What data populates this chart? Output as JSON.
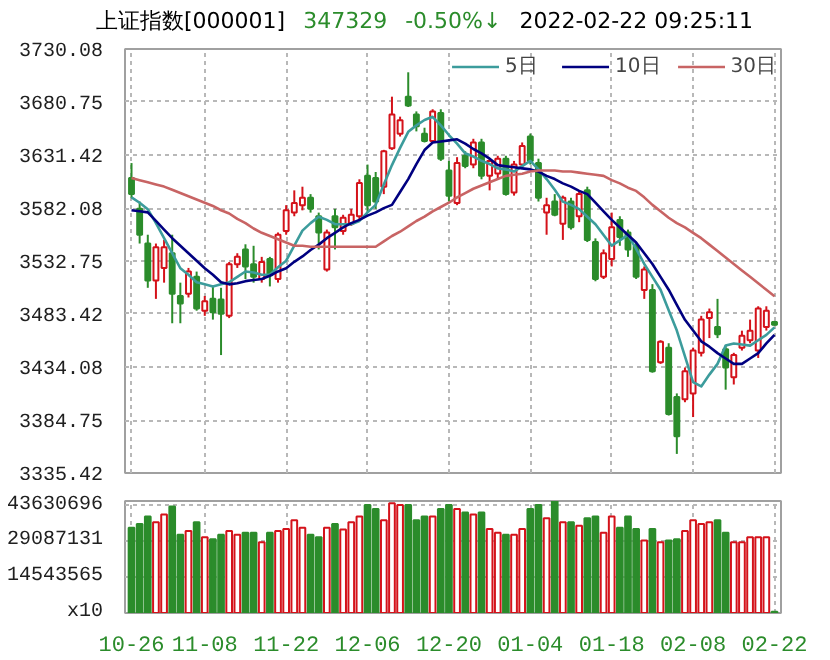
{
  "chart_data": [
    {
      "type": "candlestick",
      "title": "上证指数[000001]",
      "annotations": [
        "347329",
        "-0.50%↓",
        "2022-02-22 09:25:11"
      ],
      "categories": [
        null,
        null,
        null,
        null,
        null,
        null,
        null,
        null,
        null,
        null,
        null,
        null,
        null,
        null,
        null,
        null,
        null,
        null,
        null,
        null,
        null,
        null,
        null,
        null,
        null,
        null,
        null,
        null,
        null,
        null,
        null,
        null,
        null,
        null,
        null,
        null,
        null,
        null,
        null,
        null,
        null,
        null,
        null,
        null,
        null,
        null,
        null,
        null,
        null,
        null,
        null,
        null,
        null,
        null,
        null,
        null,
        null,
        null,
        null,
        null,
        null,
        null,
        null,
        null,
        null,
        null,
        null,
        null,
        null,
        null,
        null,
        null,
        null,
        null,
        null,
        null,
        null,
        null,
        null,
        null
      ],
      "ohlc": [
        [
          3610.1,
          3623.9,
          3591.6,
          3595.0
        ],
        [
          3581.3,
          3588.1,
          3549.0,
          3557.2
        ],
        [
          3549.0,
          3557.2,
          3507.8,
          3514.6
        ],
        [
          3514.6,
          3549.0,
          3497.5,
          3545.5
        ],
        [
          3526.3,
          3552.4,
          3512.6,
          3545.5
        ],
        [
          3540.0,
          3557.2,
          3474.8,
          3502.3
        ],
        [
          3500.2,
          3512.6,
          3474.8,
          3493.3
        ],
        [
          3502.3,
          3526.3,
          3498.8,
          3522.9
        ],
        [
          3518.1,
          3522.9,
          3486.5,
          3488.5
        ],
        [
          3486.5,
          3500.2,
          3481.7,
          3495.4
        ],
        [
          3497.5,
          3509.1,
          3478.2,
          3485.1
        ],
        [
          3496.8,
          3507.8,
          3445.2,
          3483.7
        ],
        [
          3481.7,
          3531.8,
          3479.6,
          3529.7
        ],
        [
          3529.7,
          3540.0,
          3526.3,
          3536.6
        ],
        [
          3543.5,
          3548.3,
          3516.0,
          3527.7
        ],
        [
          3529.7,
          3546.9,
          3512.6,
          3518.1
        ],
        [
          3516.0,
          3536.6,
          3512.6,
          3531.8
        ],
        [
          3534.6,
          3536.6,
          3509.1,
          3519.4
        ],
        [
          3516.0,
          3559.3,
          3512.6,
          3557.2
        ],
        [
          3560.7,
          3584.7,
          3557.2,
          3579.9
        ],
        [
          3577.8,
          3598.5,
          3574.4,
          3586.8
        ],
        [
          3584.7,
          3601.9,
          3579.9,
          3591.6
        ],
        [
          3591.6,
          3595.0,
          3577.8,
          3581.3
        ],
        [
          3574.4,
          3577.8,
          3543.5,
          3559.3
        ],
        [
          3524.9,
          3562.0,
          3522.9,
          3559.3
        ],
        [
          3574.4,
          3581.3,
          3543.5,
          3564.1
        ],
        [
          3560.7,
          3575.8,
          3557.2,
          3573.0
        ],
        [
          3567.5,
          3581.3,
          3565.5,
          3575.8
        ],
        [
          3574.4,
          3608.8,
          3571.0,
          3605.3
        ],
        [
          3612.2,
          3622.5,
          3577.8,
          3584.7
        ],
        [
          3610.1,
          3615.6,
          3581.3,
          3588.1
        ],
        [
          3601.9,
          3636.2,
          3595.0,
          3634.9
        ],
        [
          3637.6,
          3685.7,
          3636.2,
          3669.2
        ],
        [
          3651.3,
          3667.1,
          3648.6,
          3663.7
        ],
        [
          3685.7,
          3708.4,
          3676.1,
          3677.5
        ],
        [
          3669.2,
          3672.0,
          3653.4,
          3658.2
        ],
        [
          3651.3,
          3656.8,
          3643.1,
          3644.5
        ],
        [
          3644.5,
          3674.0,
          3643.1,
          3672.0
        ],
        [
          3670.6,
          3674.0,
          3625.9,
          3628.0
        ],
        [
          3617.0,
          3625.9,
          3588.1,
          3593.6
        ],
        [
          3586.8,
          3629.4,
          3584.7,
          3623.9
        ],
        [
          3630.7,
          3634.9,
          3619.1,
          3621.1
        ],
        [
          3622.5,
          3646.5,
          3619.1,
          3643.1
        ],
        [
          3643.1,
          3646.5,
          3608.8,
          3612.2
        ],
        [
          3612.2,
          3628.0,
          3598.5,
          3625.9
        ],
        [
          3614.2,
          3630.7,
          3608.8,
          3628.0
        ],
        [
          3628.0,
          3630.7,
          3593.6,
          3595.0
        ],
        [
          3596.4,
          3625.9,
          3593.6,
          3622.5
        ],
        [
          3622.5,
          3643.1,
          3619.1,
          3639.7
        ],
        [
          3648.6,
          3651.3,
          3622.5,
          3625.9
        ],
        [
          3623.9,
          3628.0,
          3588.1,
          3591.6
        ],
        [
          3577.8,
          3591.6,
          3557.2,
          3584.7
        ],
        [
          3588.1,
          3595.0,
          3574.4,
          3575.8
        ],
        [
          3567.5,
          3593.6,
          3552.4,
          3591.6
        ],
        [
          3588.1,
          3591.6,
          3562.0,
          3564.1
        ],
        [
          3574.4,
          3598.5,
          3568.9,
          3595.0
        ],
        [
          3598.5,
          3601.9,
          3550.4,
          3552.4
        ],
        [
          3550.4,
          3553.8,
          3513.9,
          3516.0
        ],
        [
          3518.1,
          3543.5,
          3516.0,
          3540.0
        ],
        [
          3534.6,
          3577.8,
          3527.7,
          3564.1
        ],
        [
          3571.0,
          3574.4,
          3546.9,
          3555.2
        ],
        [
          3559.3,
          3562.0,
          3536.6,
          3543.5
        ],
        [
          3546.9,
          3550.4,
          3516.0,
          3518.1
        ],
        [
          3505.7,
          3527.7,
          3497.5,
          3524.9
        ],
        [
          3505.7,
          3511.2,
          3428.8,
          3430.1
        ],
        [
          3438.4,
          3459.0,
          3437.0,
          3457.6
        ],
        [
          3452.1,
          3456.2,
          3388.9,
          3390.3
        ],
        [
          3406.1,
          3409.5,
          3353.2,
          3369.7
        ],
        [
          3404.0,
          3433.6,
          3401.3,
          3430.1
        ],
        [
          3409.5,
          3452.1,
          3387.5,
          3449.4
        ],
        [
          3447.3,
          3481.7,
          3443.9,
          3478.2
        ],
        [
          3479.6,
          3488.5,
          3461.0,
          3485.1
        ],
        [
          3471.4,
          3497.5,
          3461.0,
          3464.5
        ],
        [
          3450.7,
          3454.2,
          3413.0,
          3433.6
        ],
        [
          3424.6,
          3447.3,
          3417.8,
          3445.2
        ],
        [
          3452.1,
          3467.9,
          3449.4,
          3463.1
        ],
        [
          3459.0,
          3478.2,
          3456.2,
          3467.9
        ],
        [
          3449.4,
          3490.6,
          3442.5,
          3488.5
        ],
        [
          3471.4,
          3490.6,
          3468.0,
          3486.5
        ],
        [
          3476.0,
          3477.0,
          3472.6,
          3473.3
        ]
      ],
      "colors": [
        "#2b8c2b",
        "#2b8c2b",
        "#2b8c2b",
        "#d4121a",
        "#d4121a",
        "#2b8c2b",
        "#2b8c2b",
        "#d4121a",
        "#2b8c2b",
        "#d4121a",
        "#2b8c2b",
        "#2b8c2b",
        "#d4121a",
        "#d4121a",
        "#2b8c2b",
        "#2b8c2b",
        "#d4121a",
        "#2b8c2b",
        "#d4121a",
        "#d4121a",
        "#d4121a",
        "#d4121a",
        "#2b8c2b",
        "#2b8c2b",
        "#d4121a",
        "#2b8c2b",
        "#d4121a",
        "#d4121a",
        "#d4121a",
        "#2b8c2b",
        "#2b8c2b",
        "#d4121a",
        "#d4121a",
        "#d4121a",
        "#2b8c2b",
        "#2b8c2b",
        "#2b8c2b",
        "#d4121a",
        "#2b8c2b",
        "#2b8c2b",
        "#d4121a",
        "#2b8c2b",
        "#d4121a",
        "#2b8c2b",
        "#d4121a",
        "#d4121a",
        "#2b8c2b",
        "#d4121a",
        "#d4121a",
        "#2b8c2b",
        "#2b8c2b",
        "#d4121a",
        "#2b8c2b",
        "#d4121a",
        "#2b8c2b",
        "#d4121a",
        "#2b8c2b",
        "#2b8c2b",
        "#d4121a",
        "#d4121a",
        "#2b8c2b",
        "#2b8c2b",
        "#2b8c2b",
        "#d4121a",
        "#2b8c2b",
        "#d4121a",
        "#2b8c2b",
        "#2b8c2b",
        "#d4121a",
        "#d4121a",
        "#d4121a",
        "#d4121a",
        "#2b8c2b",
        "#2b8c2b",
        "#d4121a",
        "#d4121a",
        "#d4121a",
        "#d4121a",
        "#d4121a",
        "#2b8c2b"
      ],
      "series": [
        {
          "name": "5日",
          "type": "line",
          "color": "#3c9c9c",
          "values": [
            3592,
            3587,
            3581,
            3568,
            3554,
            3540,
            3526,
            3520,
            3513,
            3511,
            3509,
            3511,
            3513,
            3518,
            3523,
            3522,
            3520,
            3520,
            3527,
            3533,
            3547,
            3561,
            3568,
            3574,
            3571,
            3567,
            3567,
            3567,
            3570,
            3578,
            3585,
            3604,
            3622,
            3638,
            3653,
            3659,
            3664,
            3667,
            3659,
            3650,
            3642,
            3633,
            3630,
            3626,
            3623,
            3619,
            3618,
            3616,
            3621,
            3626,
            3618,
            3609,
            3599,
            3588,
            3585,
            3581,
            3574,
            3567,
            3557,
            3547,
            3552,
            3557,
            3544,
            3530,
            3518,
            3506,
            3487,
            3468,
            3444,
            3420,
            3416,
            3427,
            3437,
            3454,
            3456,
            3455,
            3454,
            3459,
            3464,
            3471
          ]
        },
        {
          "name": "10日",
          "type": "line",
          "color": "#000080",
          "values": [
            3580,
            3579,
            3578,
            3570,
            3562,
            3554,
            3547,
            3540,
            3533,
            3526,
            3520,
            3513,
            3511,
            3512,
            3514,
            3515,
            3516,
            3519,
            3523,
            3526,
            3532,
            3537,
            3543,
            3548,
            3554,
            3559,
            3564,
            3568,
            3571,
            3575,
            3578,
            3582,
            3585,
            3597,
            3609,
            3623,
            3636,
            3643,
            3644,
            3645,
            3646,
            3642,
            3637,
            3633,
            3628,
            3622,
            3621,
            3620,
            3619,
            3618,
            3616,
            3612,
            3609,
            3605,
            3602,
            3598,
            3595,
            3587,
            3579,
            3571,
            3564,
            3557,
            3550,
            3540,
            3530,
            3518,
            3506,
            3492,
            3478,
            3468,
            3458,
            3453,
            3447,
            3442,
            3437,
            3437,
            3442,
            3447,
            3456,
            3464
          ]
        },
        {
          "name": "30日",
          "type": "line",
          "color": "#c86464",
          "values": [
            3610,
            3608,
            3606,
            3604,
            3602,
            3599,
            3596,
            3593,
            3590,
            3587,
            3584,
            3580,
            3577,
            3572,
            3568,
            3563,
            3559,
            3556,
            3553,
            3550,
            3547,
            3547,
            3546,
            3546,
            3546,
            3546,
            3546,
            3546,
            3546,
            3546,
            3546,
            3551,
            3556,
            3560,
            3565,
            3570,
            3574,
            3579,
            3583,
            3587,
            3592,
            3596,
            3600,
            3603,
            3606,
            3609,
            3612,
            3613,
            3614,
            3616,
            3617,
            3617,
            3617,
            3616,
            3616,
            3615,
            3614,
            3613,
            3612,
            3608,
            3605,
            3601,
            3598,
            3592,
            3585,
            3579,
            3573,
            3568,
            3564,
            3559,
            3554,
            3548,
            3542,
            3536,
            3530,
            3524,
            3518,
            3512,
            3506,
            3500
          ]
        }
      ],
      "ylim": [
        3335.42,
        3730.08
      ],
      "yticks": [
        3335.42,
        3384.75,
        3434.08,
        3483.42,
        3532.75,
        3582.08,
        3631.42,
        3680.75,
        3730.08
      ],
      "grid": true,
      "legend": "top right",
      "tick_labels": "y"
    },
    {
      "type": "bar",
      "categories": [
        "10-26",
        null,
        null,
        null,
        null,
        null,
        null,
        null,
        null,
        "11-08",
        null,
        null,
        null,
        null,
        null,
        null,
        null,
        null,
        null,
        "11-22",
        null,
        null,
        null,
        null,
        null,
        null,
        null,
        null,
        null,
        "12-06",
        null,
        null,
        null,
        null,
        null,
        null,
        null,
        null,
        null,
        "12-20",
        null,
        null,
        null,
        null,
        null,
        null,
        null,
        null,
        null,
        "01-04",
        null,
        null,
        null,
        null,
        null,
        null,
        null,
        null,
        null,
        "01-18",
        null,
        null,
        null,
        null,
        null,
        null,
        null,
        null,
        null,
        "02-08",
        null,
        null,
        null,
        null,
        null,
        null,
        null,
        null,
        null,
        "02-22"
      ],
      "values": [
        34600000,
        36200000,
        39200000,
        36900000,
        40000000,
        43300000,
        31800000,
        33300000,
        36900000,
        30800000,
        30000000,
        31800000,
        33300000,
        31800000,
        32600000,
        32600000,
        28700000,
        32600000,
        33300000,
        34100000,
        37700000,
        34600000,
        31800000,
        30800000,
        34600000,
        36200000,
        33900000,
        36900000,
        39200000,
        43900000,
        42300000,
        37700000,
        44600000,
        43900000,
        43900000,
        37700000,
        39200000,
        39200000,
        42300000,
        43900000,
        42300000,
        40800000,
        40000000,
        40800000,
        34100000,
        32600000,
        31800000,
        31800000,
        34100000,
        42300000,
        43900000,
        38500000,
        45400000,
        36900000,
        36900000,
        35400000,
        38500000,
        39200000,
        32600000,
        39200000,
        34600000,
        39200000,
        34100000,
        29500000,
        34100000,
        28700000,
        29500000,
        30000000,
        33300000,
        37700000,
        36200000,
        36900000,
        37700000,
        32600000,
        28700000,
        28700000,
        30800000,
        30800000,
        30800000,
        500000
      ],
      "colors": [
        "#2b8c2b",
        "#2b8c2b",
        "#2b8c2b",
        "#d4121a",
        "#d4121a",
        "#2b8c2b",
        "#2b8c2b",
        "#d4121a",
        "#2b8c2b",
        "#d4121a",
        "#2b8c2b",
        "#2b8c2b",
        "#d4121a",
        "#d4121a",
        "#2b8c2b",
        "#2b8c2b",
        "#d4121a",
        "#2b8c2b",
        "#d4121a",
        "#d4121a",
        "#d4121a",
        "#d4121a",
        "#2b8c2b",
        "#2b8c2b",
        "#d4121a",
        "#2b8c2b",
        "#d4121a",
        "#d4121a",
        "#d4121a",
        "#2b8c2b",
        "#2b8c2b",
        "#d4121a",
        "#d4121a",
        "#d4121a",
        "#2b8c2b",
        "#2b8c2b",
        "#2b8c2b",
        "#d4121a",
        "#2b8c2b",
        "#2b8c2b",
        "#d4121a",
        "#2b8c2b",
        "#d4121a",
        "#2b8c2b",
        "#d4121a",
        "#d4121a",
        "#2b8c2b",
        "#d4121a",
        "#d4121a",
        "#2b8c2b",
        "#2b8c2b",
        "#d4121a",
        "#2b8c2b",
        "#d4121a",
        "#2b8c2b",
        "#d4121a",
        "#2b8c2b",
        "#2b8c2b",
        "#d4121a",
        "#d4121a",
        "#2b8c2b",
        "#2b8c2b",
        "#2b8c2b",
        "#d4121a",
        "#2b8c2b",
        "#d4121a",
        "#2b8c2b",
        "#2b8c2b",
        "#d4121a",
        "#d4121a",
        "#d4121a",
        "#d4121a",
        "#2b8c2b",
        "#2b8c2b",
        "#d4121a",
        "#d4121a",
        "#d4121a",
        "#d4121a",
        "#d4121a",
        "#2b8c2b"
      ],
      "ylim": [
        0,
        45500000
      ],
      "yticks": [
        {
          "value": 0,
          "label": "x10"
        },
        14543565,
        29087131,
        43630696
      ],
      "grid": true
    }
  ]
}
